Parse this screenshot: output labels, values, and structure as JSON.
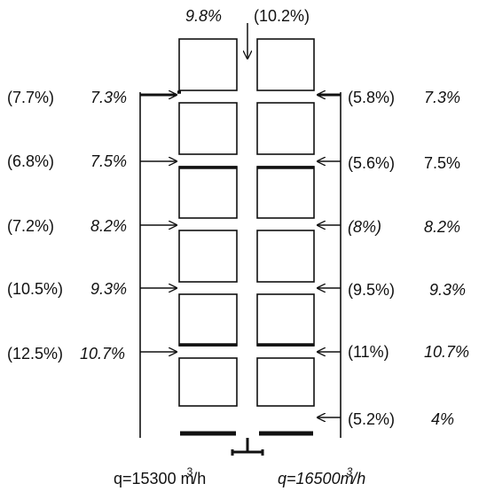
{
  "top": {
    "left_value": "9.8%",
    "right_value": "(10.2%)"
  },
  "left_rows": [
    {
      "paren": "(7.7%)",
      "value": "7.3%"
    },
    {
      "paren": "(6.8%)",
      "value": "7.5%"
    },
    {
      "paren": "(7.2%)",
      "value": "8.2%"
    },
    {
      "paren": "(10.5%)",
      "value": "9.3%"
    },
    {
      "paren": "(12.5%)",
      "value": "10.7%"
    }
  ],
  "right_rows": [
    {
      "paren": "(5.8%)",
      "value": "7.3%"
    },
    {
      "paren": "(5.6%)",
      "value": "7.5%"
    },
    {
      "paren": "(8%)",
      "value": "8.2%"
    },
    {
      "paren": "(9.5%)",
      "value": "9.3%"
    },
    {
      "paren": "(11%)",
      "value": "10.7%"
    },
    {
      "paren": "(5.2%)",
      "value": "4%"
    }
  ],
  "flows": {
    "left_prefix": "q=15300 m",
    "left_exp": "3",
    "left_suffix": "/h",
    "right_prefix": "q=16500m",
    "right_exp": "3",
    "right_suffix": "/h"
  }
}
